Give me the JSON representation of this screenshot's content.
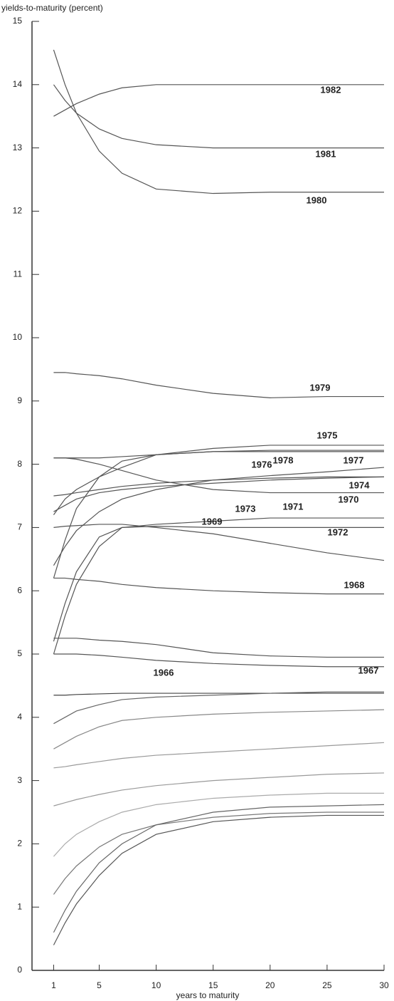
{
  "chart_data": {
    "type": "line",
    "ylabel": "yields-to-maturity (percent)",
    "xlabel": "years to maturity",
    "x": [
      1,
      2,
      3,
      5,
      7,
      10,
      15,
      20,
      25,
      30
    ],
    "xlim": [
      -0.9,
      30
    ],
    "xticks": [
      1,
      5,
      10,
      15,
      20,
      25,
      30
    ],
    "ylim": [
      0,
      15
    ],
    "yticks": [
      0,
      1,
      2,
      3,
      4,
      5,
      6,
      7,
      8,
      9,
      10,
      11,
      12,
      13,
      14,
      15
    ],
    "series": [
      {
        "name": "1982",
        "color": "#555555",
        "values": [
          13.5,
          13.6,
          13.7,
          13.85,
          13.95,
          14.0,
          14.0,
          14.0,
          14.0,
          14.0
        ]
      },
      {
        "name": "1981",
        "color": "#555555",
        "values": [
          14.0,
          13.75,
          13.55,
          13.3,
          13.15,
          13.05,
          13.0,
          13.0,
          13.0,
          13.0
        ]
      },
      {
        "name": "1980",
        "color": "#555555",
        "values": [
          14.55,
          14.0,
          13.55,
          12.95,
          12.6,
          12.35,
          12.28,
          12.3,
          12.3,
          12.3
        ]
      },
      {
        "name": "1979",
        "color": "#555555",
        "values": [
          9.45,
          9.45,
          9.43,
          9.4,
          9.35,
          9.25,
          9.12,
          9.05,
          9.07,
          9.07
        ]
      },
      {
        "name": "1975",
        "color": "#555555",
        "values": [
          7.2,
          7.45,
          7.6,
          7.8,
          7.95,
          8.15,
          8.25,
          8.3,
          8.3,
          8.3
        ]
      },
      {
        "name": "1978",
        "color": "#555555",
        "values": [
          8.1,
          8.1,
          8.1,
          8.1,
          8.12,
          8.15,
          8.2,
          8.22,
          8.22,
          8.22
        ]
      },
      {
        "name": "1976",
        "color": "#555555",
        "values": [
          6.2,
          6.8,
          7.3,
          7.8,
          8.05,
          8.15,
          8.2,
          8.2,
          8.2,
          8.2
        ]
      },
      {
        "name": "1977",
        "color": "#555555",
        "values": [
          6.4,
          6.7,
          6.95,
          7.25,
          7.45,
          7.6,
          7.75,
          7.82,
          7.88,
          7.95
        ]
      },
      {
        "name": "1974",
        "color": "#555555",
        "values": [
          8.1,
          8.1,
          8.08,
          8.0,
          7.9,
          7.75,
          7.6,
          7.55,
          7.55,
          7.55
        ]
      },
      {
        "name": "1970",
        "color": "#555555",
        "values": [
          7.5,
          7.52,
          7.55,
          7.6,
          7.65,
          7.7,
          7.75,
          7.78,
          7.8,
          7.8
        ]
      },
      {
        "name": "1973",
        "color": "#555555",
        "values": [
          7.25,
          7.35,
          7.45,
          7.55,
          7.6,
          7.65,
          7.7,
          7.75,
          7.78,
          7.8
        ]
      },
      {
        "name": "1971",
        "color": "#555555",
        "values": [
          5.0,
          5.6,
          6.1,
          6.7,
          7.0,
          7.05,
          7.1,
          7.15,
          7.15,
          7.15
        ]
      },
      {
        "name": "1972",
        "color": "#555555",
        "values": [
          5.2,
          5.8,
          6.3,
          6.85,
          7.0,
          7.02,
          7.0,
          7.0,
          7.0,
          7.0
        ]
      },
      {
        "name": "1969",
        "color": "#555555",
        "values": [
          7.0,
          7.02,
          7.03,
          7.05,
          7.05,
          7.0,
          6.9,
          6.75,
          6.6,
          6.48
        ]
      },
      {
        "name": "1968",
        "color": "#555555",
        "values": [
          6.2,
          6.2,
          6.18,
          6.15,
          6.1,
          6.05,
          6.0,
          5.97,
          5.95,
          5.95
        ]
      },
      {
        "name": "1967",
        "color": "#555555",
        "values": [
          5.25,
          5.25,
          5.25,
          5.22,
          5.2,
          5.15,
          5.02,
          4.97,
          4.95,
          4.95
        ]
      },
      {
        "name": "1966",
        "color": "#555555",
        "values": [
          5.0,
          5.0,
          5.0,
          4.98,
          4.95,
          4.9,
          4.85,
          4.82,
          4.8,
          4.8
        ]
      },
      {
        "color": "#444444",
        "values": [
          4.35,
          4.35,
          4.36,
          4.37,
          4.38,
          4.38,
          4.38,
          4.38,
          4.38,
          4.38
        ]
      },
      {
        "color": "#666666",
        "values": [
          3.9,
          4.0,
          4.1,
          4.2,
          4.28,
          4.32,
          4.35,
          4.38,
          4.4,
          4.4
        ]
      },
      {
        "color": "#888888",
        "values": [
          3.5,
          3.6,
          3.7,
          3.85,
          3.95,
          4.0,
          4.05,
          4.08,
          4.1,
          4.12
        ]
      },
      {
        "color": "#999999",
        "values": [
          3.2,
          3.22,
          3.25,
          3.3,
          3.35,
          3.4,
          3.45,
          3.5,
          3.55,
          3.6
        ]
      },
      {
        "color": "#999999",
        "values": [
          2.6,
          2.65,
          2.7,
          2.78,
          2.85,
          2.92,
          3.0,
          3.05,
          3.1,
          3.12
        ]
      },
      {
        "color": "#aaaaaa",
        "values": [
          1.8,
          2.0,
          2.15,
          2.35,
          2.5,
          2.62,
          2.72,
          2.77,
          2.8,
          2.8
        ]
      },
      {
        "color": "#777777",
        "values": [
          1.2,
          1.45,
          1.65,
          1.95,
          2.15,
          2.3,
          2.42,
          2.48,
          2.5,
          2.5
        ]
      },
      {
        "color": "#666666",
        "values": [
          0.6,
          0.95,
          1.25,
          1.7,
          2.0,
          2.3,
          2.5,
          2.58,
          2.6,
          2.62
        ]
      },
      {
        "color": "#555555",
        "values": [
          0.4,
          0.75,
          1.05,
          1.5,
          1.85,
          2.15,
          2.35,
          2.42,
          2.45,
          2.45
        ]
      }
    ]
  }
}
